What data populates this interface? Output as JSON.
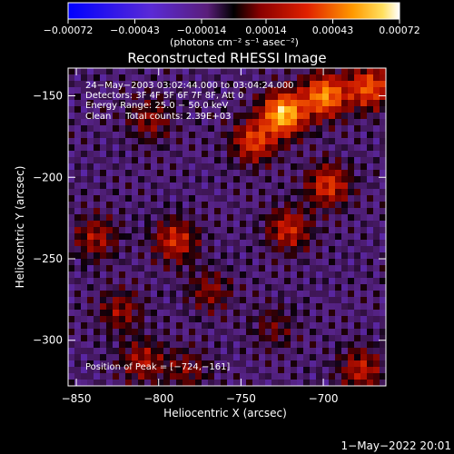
{
  "chart_data": {
    "type": "heatmap",
    "title": "Reconstructed RHESSI Image",
    "xlabel": "Heliocentric X (arcsec)",
    "ylabel": "Heliocentric Y (arcsec)",
    "xlim": [
      -855,
      -662
    ],
    "ylim": [
      -328,
      -133
    ],
    "x_ticks": [
      -850,
      -800,
      -750,
      -700
    ],
    "y_ticks": [
      -300,
      -250,
      -200,
      -150
    ],
    "x_tick_labels": [
      "−850",
      "−800",
      "−750",
      "−700"
    ],
    "y_tick_labels": [
      "−300",
      "−250",
      "−200",
      "−150"
    ],
    "colorbar": {
      "range": [
        -0.00072,
        0.00072
      ],
      "tick_values": [
        -0.00072,
        -0.00043,
        -0.00014,
        0.00014,
        0.00043,
        0.00072
      ],
      "tick_labels": [
        "−0.00072",
        "−0.00043",
        "−0.00014",
        "0.00014",
        "0.00043",
        "0.00072"
      ],
      "unit_label": "(photons cm⁻² s⁻¹ asec⁻²)"
    },
    "annotations": [
      "24−May−2003 03:02:44.000 to 03:04:24.000",
      "Detectors: 3F 4F 5F 6F 7F 8F, Att 0",
      "Energy Range: 25.0 − 50.0 keV",
      "Clean     Total counts: 2.39E+03"
    ],
    "peak_label": "Position of Peak = [−724,−161]",
    "peak": [
      -724,
      -161
    ],
    "hot_spots": [
      {
        "x": -724,
        "y": -161,
        "value": 0.00072
      },
      {
        "x": -699,
        "y": -150,
        "value": 0.0006
      },
      {
        "x": -672,
        "y": -145,
        "value": 0.00048
      },
      {
        "x": -742,
        "y": -178,
        "value": 0.00042
      },
      {
        "x": -697,
        "y": -205,
        "value": 0.0004
      },
      {
        "x": -721,
        "y": -232,
        "value": 0.00035
      },
      {
        "x": -790,
        "y": -239,
        "value": 0.00036
      },
      {
        "x": -838,
        "y": -237,
        "value": 0.00028
      },
      {
        "x": -805,
        "y": -165,
        "value": 0.00023
      },
      {
        "x": -823,
        "y": -282,
        "value": 0.00024
      },
      {
        "x": -769,
        "y": -270,
        "value": 0.00022
      },
      {
        "x": -810,
        "y": -313,
        "value": 0.00028
      },
      {
        "x": -783,
        "y": -318,
        "value": 0.0002
      },
      {
        "x": -677,
        "y": -318,
        "value": 0.00032
      },
      {
        "x": -730,
        "y": -292,
        "value": 0.00016
      }
    ]
  },
  "footer_date": "1−May−2022 20:01"
}
